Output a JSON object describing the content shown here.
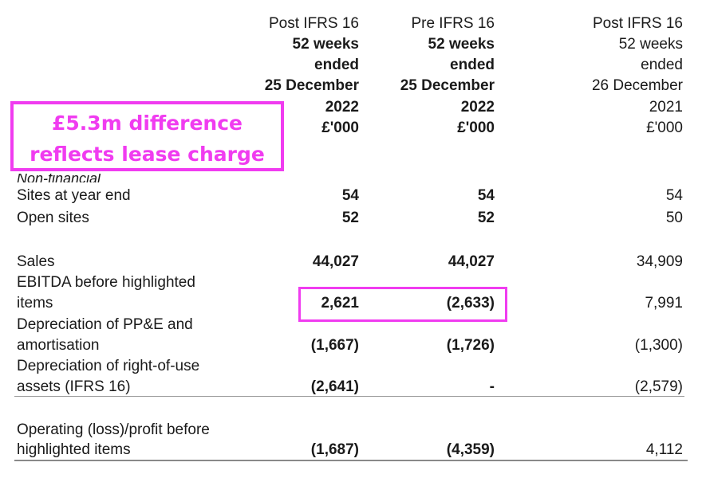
{
  "columns": [
    {
      "header": [
        "Post IFRS 16",
        "52 weeks",
        "ended",
        "25 December",
        "2022",
        "£'000"
      ],
      "bold_from_line": 1
    },
    {
      "header": [
        "Pre IFRS 16",
        "52 weeks",
        "ended",
        "25 December",
        "2022",
        "£'000"
      ],
      "bold_from_line": 1
    },
    {
      "header": [
        "Post IFRS 16",
        "52 weeks",
        "ended",
        "26 December",
        "2021",
        "£'000"
      ],
      "bold_from_line": 99
    }
  ],
  "section_label": "Non-financial",
  "rows": [
    {
      "label": [
        "Sites at year end"
      ],
      "values": [
        "54",
        "54",
        "54"
      ]
    },
    {
      "label": [
        "Open sites"
      ],
      "values": [
        "52",
        "52",
        "50"
      ]
    },
    {
      "label": [
        "Sales"
      ],
      "values": [
        "44,027",
        "44,027",
        "34,909"
      ]
    },
    {
      "label": [
        "EBITDA before highlighted",
        "items"
      ],
      "values": [
        "2,621",
        "(2,633)",
        "7,991"
      ]
    },
    {
      "label": [
        "Depreciation of PP&E and",
        "amortisation"
      ],
      "values": [
        "(1,667)",
        "(1,726)",
        "(1,300)"
      ]
    },
    {
      "label": [
        "Depreciation of right-of-use",
        "assets (IFRS 16)"
      ],
      "values": [
        "(2,641)",
        "-",
        "(2,579)"
      ]
    },
    {
      "label": [
        "Operating (loss)/profit before",
        "highlighted items"
      ],
      "values": [
        "(1,687)",
        "(4,359)",
        "4,112"
      ]
    }
  ],
  "callout": {
    "line1": "£5.3m difference",
    "line2": "reflects lease charge",
    "color": "#f03cf0"
  }
}
